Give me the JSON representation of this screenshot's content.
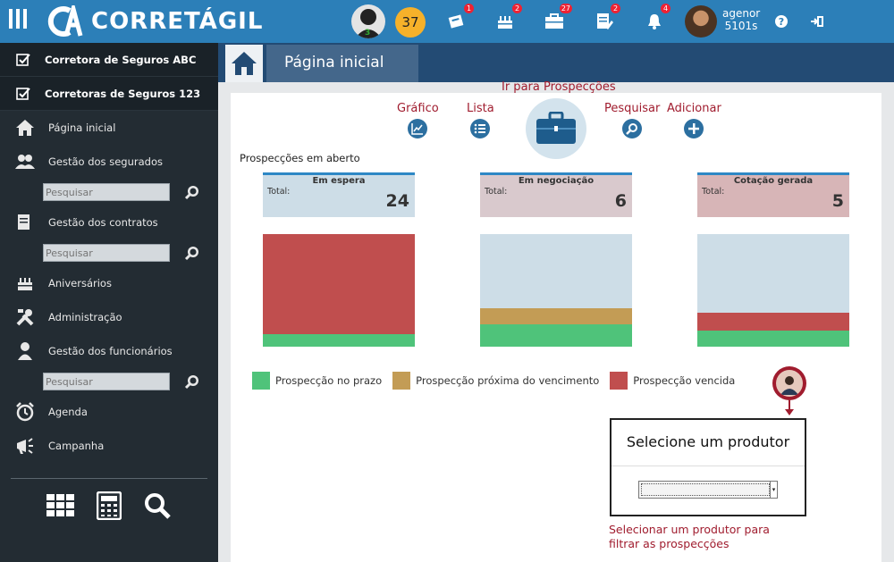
{
  "app": {
    "name": "CORRETÁGIL"
  },
  "topbar": {
    "level_badge": "37",
    "avatar_count": "3",
    "notifications": [
      {
        "icon": "newspaper-icon",
        "count": "1"
      },
      {
        "icon": "cake-icon",
        "count": "2"
      },
      {
        "icon": "briefcase-icon",
        "count": "27"
      },
      {
        "icon": "document-edit-icon",
        "count": "2"
      },
      {
        "icon": "bell-icon",
        "count": "4"
      }
    ],
    "user": {
      "line1": "agenor",
      "line2": "5101s"
    }
  },
  "sidebar": {
    "companies": [
      "Corretora de Seguros ABC",
      "Corretoras de Seguros 123"
    ],
    "items": {
      "home": "Página inicial",
      "insured": "Gestão dos segurados",
      "contracts": "Gestão dos contratos",
      "birthdays": "Aniversários",
      "admin": "Administração",
      "employees": "Gestão dos funcionários",
      "agenda": "Agenda",
      "campaign": "Campanha"
    },
    "search_placeholder": "Pesquisar"
  },
  "header": {
    "title": "Página inicial"
  },
  "main": {
    "goto_label": "Ir para Prospecções",
    "actions": {
      "chart": "Gráfico",
      "list": "Lista",
      "search": "Pesquisar",
      "add": "Adicionar"
    },
    "section_title": "Prospecções em aberto",
    "total_label": "Total:",
    "cards": [
      {
        "title": "Em espera",
        "total": "24",
        "bg": "#cddde7"
      },
      {
        "title": "Em negociação",
        "total": "6",
        "bg": "#d9c9cd"
      },
      {
        "title": "Cotação gerada",
        "total": "5",
        "bg": "#d7b5b7"
      }
    ],
    "bars": [
      {
        "on_time": 0.11,
        "near_due": 0.0,
        "overdue": 0.89
      },
      {
        "on_time": 0.2,
        "near_due": 0.14,
        "overdue": 0.0
      },
      {
        "on_time": 0.14,
        "near_due": 0.0,
        "overdue": 0.16
      }
    ],
    "legend": {
      "on_time": "Prospecção no prazo",
      "near_due": "Prospecção próxima do vencimento",
      "overdue": "Prospecção vencida"
    },
    "colors": {
      "on_time": "#4fc37a",
      "near_due": "#c39c55",
      "overdue": "#c04e4e",
      "empty": "#cddde7"
    },
    "producer": {
      "title": "Selecione um produtor",
      "selected": "",
      "hint": "Selecionar um produtor para filtrar as prospecções"
    }
  }
}
